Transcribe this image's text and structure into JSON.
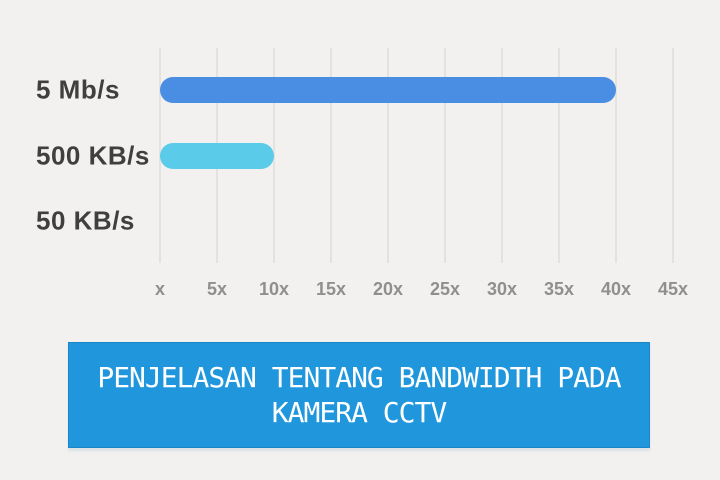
{
  "chart_data": {
    "type": "bar",
    "orientation": "horizontal",
    "title": "PENJELASAN TENTANG BANDWIDTH PADA KAMERA CCTV",
    "categories": [
      "5 Mb/s",
      "500 KB/s",
      "50 KB/s"
    ],
    "values": [
      40,
      10,
      0
    ],
    "x_tick_labels": [
      "x",
      "5x",
      "10x",
      "15x",
      "20x",
      "25x",
      "30x",
      "35x",
      "40x",
      "45x"
    ],
    "xlim": [
      0,
      45
    ],
    "grid": "vertical-only",
    "legend": "none",
    "bar_colors": [
      "#4a8ee4",
      "#5bcbea",
      "none"
    ]
  },
  "banner": {
    "line1": "PENJELASAN TENTANG BANDWIDTH PADA",
    "line2": "KAMERA CCTV",
    "background": "#2096dc",
    "text_color": "#ffffff"
  },
  "colors": {
    "page_background": "#f2f1ef",
    "gridline": "#e4e2df",
    "category_label": "#3f3f3f",
    "tick_label": "#8f8f8f"
  }
}
